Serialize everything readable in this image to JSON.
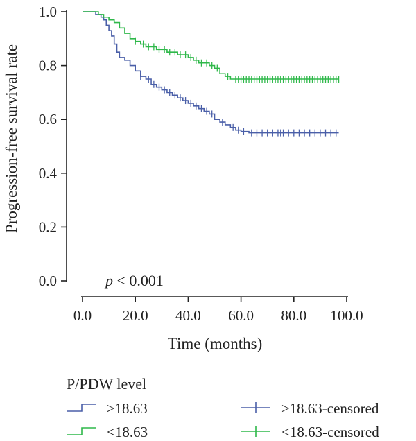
{
  "chart_data": {
    "type": "line",
    "subtype": "kaplan-meier survival curve",
    "xlabel": "Time (months)",
    "ylabel": "Progression-free survival rate",
    "xlim": [
      0,
      100
    ],
    "ylim": [
      0,
      1.0
    ],
    "x_ticks": [
      "0.0",
      "20.0",
      "40.0",
      "60.0",
      "80.0",
      "100.0"
    ],
    "y_ticks": [
      "0.0",
      "0.2",
      "0.4",
      "0.6",
      "0.8",
      "1.0"
    ],
    "grid": false,
    "annotation": {
      "italic": "p",
      "text": " < 0.001"
    },
    "legend": {
      "title": "P/PDW level",
      "placement": "bottom",
      "entries": [
        {
          "label": "≥18.63",
          "kind": "step",
          "color": "#4a5fa8"
        },
        {
          "label": "≥18.63-censored",
          "kind": "censor",
          "color": "#4a5fa8"
        },
        {
          "label": "<18.63",
          "kind": "step",
          "color": "#2fb84a"
        },
        {
          "label": "<18.63-censored",
          "kind": "censor",
          "color": "#2fb84a"
        }
      ]
    },
    "series": [
      {
        "name": "≥18.63",
        "color": "#4a5fa8",
        "x": [
          0,
          3,
          5,
          7,
          8,
          9,
          10,
          11,
          12,
          13,
          14,
          16,
          18,
          20,
          22,
          24,
          26,
          28,
          30,
          32,
          34,
          36,
          38,
          40,
          42,
          44,
          46,
          48,
          50,
          52,
          54,
          56,
          58,
          60,
          63,
          97
        ],
        "y": [
          1.0,
          1.0,
          0.99,
          0.98,
          0.97,
          0.95,
          0.93,
          0.91,
          0.88,
          0.85,
          0.83,
          0.82,
          0.8,
          0.78,
          0.76,
          0.75,
          0.73,
          0.72,
          0.71,
          0.7,
          0.69,
          0.68,
          0.67,
          0.66,
          0.65,
          0.64,
          0.63,
          0.62,
          0.6,
          0.59,
          0.58,
          0.57,
          0.56,
          0.555,
          0.55,
          0.55
        ],
        "censored_x": [
          22,
          25,
          27,
          29,
          31,
          33,
          35,
          37,
          39,
          41,
          43,
          45,
          47,
          49,
          53,
          57,
          59,
          61,
          64,
          66,
          68,
          70,
          72,
          74,
          75,
          76,
          78,
          80,
          82,
          84,
          86,
          88,
          90,
          92,
          94,
          96
        ]
      },
      {
        "name": "<18.63",
        "color": "#2fb84a",
        "x": [
          0,
          4,
          6,
          8,
          10,
          12,
          14,
          16,
          18,
          20,
          22,
          24,
          26,
          28,
          30,
          32,
          34,
          36,
          38,
          40,
          42,
          44,
          46,
          48,
          50,
          52,
          54,
          56,
          58,
          97
        ],
        "y": [
          1.0,
          1.0,
          0.99,
          0.98,
          0.97,
          0.96,
          0.94,
          0.92,
          0.9,
          0.89,
          0.88,
          0.87,
          0.87,
          0.86,
          0.86,
          0.85,
          0.85,
          0.84,
          0.84,
          0.83,
          0.82,
          0.81,
          0.81,
          0.8,
          0.79,
          0.77,
          0.76,
          0.75,
          0.75,
          0.75
        ],
        "censored_x": [
          20,
          23,
          25,
          27,
          29,
          31,
          33,
          35,
          37,
          39,
          41,
          43,
          45,
          47,
          49,
          51,
          55,
          58,
          59,
          60,
          61,
          62,
          63,
          64,
          65,
          66,
          67,
          68,
          69,
          70,
          71,
          72,
          73,
          74,
          75,
          76,
          77,
          78,
          79,
          80,
          81,
          82,
          83,
          84,
          85,
          86,
          87,
          88,
          89,
          90,
          91,
          92,
          93,
          94,
          95,
          96,
          97
        ]
      }
    ]
  }
}
